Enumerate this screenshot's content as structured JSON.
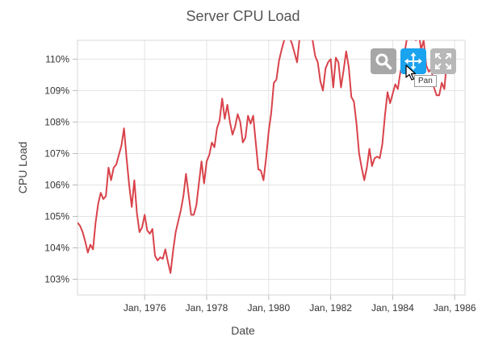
{
  "chart_data": {
    "type": "line",
    "title": "Server CPU Load",
    "xlabel": "Date",
    "ylabel": "CPU Load",
    "x_range": [
      "1973-11",
      "1986-05"
    ],
    "ylim": [
      102.5,
      110.6
    ],
    "x_ticks": [
      "Jan, 1976",
      "Jan, 1978",
      "Jan, 1980",
      "Jan, 1982",
      "Jan, 1984",
      "Jan, 1986"
    ],
    "x_tick_dates": [
      "1976-01",
      "1978-01",
      "1980-01",
      "1982-01",
      "1984-01",
      "1986-01"
    ],
    "y_ticks": [
      "103%",
      "104%",
      "105%",
      "106%",
      "107%",
      "108%",
      "109%",
      "110%"
    ],
    "y_tick_values": [
      103,
      104,
      105,
      106,
      107,
      108,
      109,
      110
    ],
    "grid": true,
    "line_color": "#d9434b",
    "series": [
      {
        "values": [
          [
            "1973-11",
            104.8
          ],
          [
            "1973-12",
            104.7
          ],
          [
            "1974-01",
            104.5
          ],
          [
            "1974-02",
            104.2
          ],
          [
            "1974-03",
            103.85
          ],
          [
            "1974-04",
            104.1
          ],
          [
            "1974-05",
            103.95
          ],
          [
            "1974-06",
            104.8
          ],
          [
            "1974-07",
            105.4
          ],
          [
            "1974-08",
            105.75
          ],
          [
            "1974-09",
            105.55
          ],
          [
            "1974-10",
            105.65
          ],
          [
            "1974-11",
            106.55
          ],
          [
            "1974-12",
            106.15
          ],
          [
            "1975-01",
            106.55
          ],
          [
            "1975-02",
            106.65
          ],
          [
            "1975-03",
            106.95
          ],
          [
            "1975-04",
            107.25
          ],
          [
            "1975-05",
            107.8
          ],
          [
            "1975-06",
            106.85
          ],
          [
            "1975-07",
            106.0
          ],
          [
            "1975-08",
            105.3
          ],
          [
            "1975-09",
            106.15
          ],
          [
            "1975-10",
            105.1
          ],
          [
            "1975-11",
            104.5
          ],
          [
            "1975-12",
            104.65
          ],
          [
            "1976-01",
            105.05
          ],
          [
            "1976-02",
            104.55
          ],
          [
            "1976-03",
            104.45
          ],
          [
            "1976-04",
            104.6
          ],
          [
            "1976-05",
            103.75
          ],
          [
            "1976-06",
            103.6
          ],
          [
            "1976-07",
            103.7
          ],
          [
            "1976-08",
            103.65
          ],
          [
            "1976-09",
            103.95
          ],
          [
            "1976-10",
            103.55
          ],
          [
            "1976-11",
            103.2
          ],
          [
            "1976-12",
            103.9
          ],
          [
            "1977-01",
            104.5
          ],
          [
            "1977-02",
            104.85
          ],
          [
            "1977-03",
            105.2
          ],
          [
            "1977-04",
            105.65
          ],
          [
            "1977-05",
            106.35
          ],
          [
            "1977-06",
            105.7
          ],
          [
            "1977-07",
            105.05
          ],
          [
            "1977-08",
            105.05
          ],
          [
            "1977-09",
            105.35
          ],
          [
            "1977-10",
            106.05
          ],
          [
            "1977-11",
            106.75
          ],
          [
            "1977-12",
            106.05
          ],
          [
            "1978-01",
            106.75
          ],
          [
            "1978-02",
            106.95
          ],
          [
            "1978-03",
            107.35
          ],
          [
            "1978-04",
            107.2
          ],
          [
            "1978-05",
            107.8
          ],
          [
            "1978-06",
            108.05
          ],
          [
            "1978-07",
            108.75
          ],
          [
            "1978-08",
            108.1
          ],
          [
            "1978-09",
            108.55
          ],
          [
            "1978-10",
            108.0
          ],
          [
            "1978-11",
            107.6
          ],
          [
            "1978-12",
            107.85
          ],
          [
            "1979-01",
            108.25
          ],
          [
            "1979-02",
            108.0
          ],
          [
            "1979-03",
            107.35
          ],
          [
            "1979-04",
            107.5
          ],
          [
            "1979-05",
            108.2
          ],
          [
            "1979-06",
            107.95
          ],
          [
            "1979-07",
            108.2
          ],
          [
            "1979-08",
            107.35
          ],
          [
            "1979-09",
            106.5
          ],
          [
            "1979-10",
            106.45
          ],
          [
            "1979-11",
            106.15
          ],
          [
            "1979-12",
            106.85
          ],
          [
            "1980-01",
            107.7
          ],
          [
            "1980-02",
            108.3
          ],
          [
            "1980-03",
            109.25
          ],
          [
            "1980-04",
            109.35
          ],
          [
            "1980-05",
            109.95
          ],
          [
            "1980-06",
            110.3
          ],
          [
            "1980-07",
            110.6
          ],
          [
            "1980-08",
            111.2
          ],
          [
            "1980-09",
            110.7
          ],
          [
            "1980-10",
            110.5
          ],
          [
            "1980-11",
            110.2
          ],
          [
            "1980-12",
            109.9
          ],
          [
            "1981-01",
            110.7
          ],
          [
            "1981-02",
            111.4
          ],
          [
            "1981-03",
            111.2
          ],
          [
            "1981-04",
            111.0
          ],
          [
            "1981-05",
            110.9
          ],
          [
            "1981-06",
            110.6
          ],
          [
            "1981-07",
            110.1
          ],
          [
            "1981-08",
            109.9
          ],
          [
            "1981-09",
            109.3
          ],
          [
            "1981-10",
            109.0
          ],
          [
            "1981-11",
            109.7
          ],
          [
            "1981-12",
            109.9
          ],
          [
            "1982-01",
            110.0
          ],
          [
            "1982-02",
            109.1
          ],
          [
            "1982-03",
            110.05
          ],
          [
            "1982-04",
            109.9
          ],
          [
            "1982-05",
            109.1
          ],
          [
            "1982-06",
            109.65
          ],
          [
            "1982-07",
            110.25
          ],
          [
            "1982-08",
            109.75
          ],
          [
            "1982-09",
            108.8
          ],
          [
            "1982-10",
            108.65
          ],
          [
            "1982-11",
            107.95
          ],
          [
            "1982-12",
            107.0
          ],
          [
            "1983-01",
            106.55
          ],
          [
            "1983-02",
            106.15
          ],
          [
            "1983-03",
            106.55
          ],
          [
            "1983-04",
            107.15
          ],
          [
            "1983-05",
            106.6
          ],
          [
            "1983-06",
            106.85
          ],
          [
            "1983-07",
            106.9
          ],
          [
            "1983-08",
            106.85
          ],
          [
            "1983-09",
            107.3
          ],
          [
            "1983-10",
            108.2
          ],
          [
            "1983-11",
            108.95
          ],
          [
            "1983-12",
            108.6
          ],
          [
            "1984-01",
            108.9
          ],
          [
            "1984-02",
            109.2
          ],
          [
            "1984-03",
            109.05
          ],
          [
            "1984-04",
            109.6
          ],
          [
            "1984-05",
            109.9
          ],
          [
            "1984-06",
            110.4
          ],
          [
            "1984-07",
            110.9
          ],
          [
            "1984-08",
            111.2
          ],
          [
            "1984-09",
            110.8
          ],
          [
            "1984-10",
            110.6
          ],
          [
            "1984-11",
            110.9
          ],
          [
            "1984-12",
            110.3
          ],
          [
            "1985-01",
            110.6
          ],
          [
            "1985-02",
            109.8
          ],
          [
            "1985-03",
            109.6
          ],
          [
            "1985-04",
            109.7
          ],
          [
            "1985-05",
            109.1
          ],
          [
            "1985-06",
            108.85
          ],
          [
            "1985-07",
            108.85
          ],
          [
            "1985-08",
            109.25
          ],
          [
            "1985-09",
            109.05
          ],
          [
            "1985-10",
            109.95
          ],
          [
            "1985-11",
            109.75
          ]
        ]
      }
    ]
  },
  "toolbar": {
    "zoom_icon": "magnifier-icon",
    "pan_icon": "pan-arrows-icon",
    "reset_icon": "reset-zoom-icon",
    "pan_tooltip": "Pan",
    "active_color": "#1aa3ee"
  }
}
